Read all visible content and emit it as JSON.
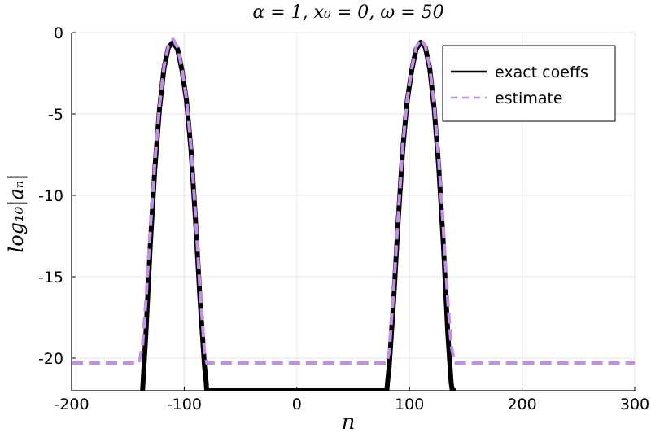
{
  "chart_data": {
    "type": "line",
    "title": "α = 1, x₀ = 0, ω = 50",
    "xlabel": "n",
    "ylabel": "log₁₀|aₙ|",
    "xlim": [
      -200,
      300
    ],
    "ylim": [
      -22,
      0
    ],
    "xticks": [
      -200,
      -100,
      0,
      100,
      200,
      300
    ],
    "xtick_labels": [
      "-200",
      "-100",
      "0",
      "100",
      "200",
      "300"
    ],
    "yticks": [
      0,
      -5,
      -10,
      -15,
      -20
    ],
    "ytick_labels": [
      "0",
      "-5",
      "-10",
      "-15",
      "-20"
    ],
    "grid": true,
    "legend_position": "top-right",
    "series": [
      {
        "name": "exact coeffs",
        "style": "solid",
        "color": "#000000",
        "x": [
          -137,
          -134,
          -130,
          -126,
          -122,
          -118,
          -114,
          -110,
          -106,
          -102,
          -98,
          -94,
          -90,
          -86,
          -82,
          -80.5,
          -80,
          -79,
          -78,
          -77,
          -76,
          -75,
          75,
          76,
          77,
          78,
          79,
          80,
          80.5,
          82,
          86,
          90,
          94,
          98,
          102,
          106,
          110,
          114,
          118,
          122,
          126,
          130,
          134,
          137,
          138,
          139,
          140,
          141
        ],
        "y": [
          -22,
          -18.5,
          -12.9,
          -8.3,
          -4.7,
          -2.2,
          -0.9,
          -0.6,
          -1.0,
          -2.3,
          -4.2,
          -7.2,
          -11.5,
          -16.4,
          -20.5,
          -21.5,
          -22,
          -22,
          -22,
          -22,
          -22,
          -22,
          -22,
          -22,
          -22,
          -22,
          -22,
          -22,
          -21.5,
          -20.5,
          -16.4,
          -11.5,
          -7.2,
          -4.2,
          -2.3,
          -1.0,
          -0.6,
          -0.9,
          -2.2,
          -4.7,
          -8.3,
          -12.9,
          -18.5,
          -21.5,
          -22,
          -22,
          -22,
          -22
        ]
      },
      {
        "name": "estimate",
        "style": "dashed",
        "color": "#c18ee8",
        "x": [
          -200,
          -140,
          -137,
          -134,
          -130,
          -126,
          -122,
          -118,
          -114,
          -110,
          -106,
          -102,
          -98,
          -94,
          -90,
          -86,
          -82,
          -80,
          -79,
          79,
          80,
          82,
          86,
          90,
          94,
          98,
          102,
          106,
          110,
          114,
          118,
          122,
          126,
          130,
          134,
          137,
          140,
          300
        ],
        "y": [
          -20.3,
          -20.3,
          -19.2,
          -16.5,
          -12.0,
          -7.9,
          -4.5,
          -2.1,
          -0.8,
          -0.4,
          -0.9,
          -2.2,
          -4.1,
          -7.0,
          -11.2,
          -15.8,
          -19.6,
          -20.3,
          -20.3,
          -20.3,
          -20.3,
          -19.6,
          -15.8,
          -11.2,
          -7.0,
          -4.1,
          -2.2,
          -0.9,
          -0.4,
          -0.8,
          -2.1,
          -4.5,
          -7.9,
          -12.0,
          -16.5,
          -19.2,
          -20.3,
          -20.3
        ]
      }
    ]
  }
}
